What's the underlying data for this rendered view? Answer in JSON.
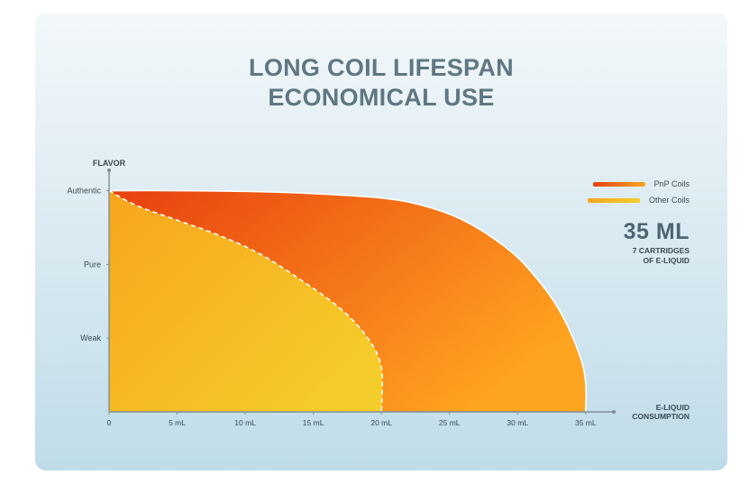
{
  "title_line1": "LONG COIL LIFESPAN",
  "title_line2": "ECONOMICAL USE",
  "highlight": {
    "value": "35 ML",
    "line1": "7 CARTRIDGES",
    "line2": "OF E-LIQUID"
  },
  "colors": {
    "pnp_start": "#e8400f",
    "pnp_end": "#ffa420",
    "other_start": "#f7a51d",
    "other_end": "#f5cd2a",
    "axis": "#7d8f99"
  },
  "chart_data": {
    "type": "area",
    "title": "LONG COIL LIFESPAN ECONOMICAL USE",
    "xlabel": [
      "E-LIQUID",
      "CONSUMPTION"
    ],
    "ylabel": "FLAVOR",
    "x_ticks": [
      "0",
      "5 mL",
      "10 mL",
      "15 mL",
      "20 mL",
      "25 mL",
      "30 mL",
      "35 mL"
    ],
    "x_tick_values": [
      0,
      5,
      10,
      15,
      20,
      25,
      30,
      35
    ],
    "y_categories": [
      "Weak",
      "Pure",
      "Authentic"
    ],
    "y_category_levels": [
      1,
      2,
      3
    ],
    "xlim": [
      0,
      37
    ],
    "ylim": [
      0,
      3.3
    ],
    "legend_position": "top-right",
    "series": [
      {
        "name": "PnP Coils",
        "x": [
          0,
          5,
          10,
          15,
          20,
          23,
          26,
          29,
          31,
          33,
          34.5,
          35,
          35
        ],
        "y": [
          3,
          3,
          2.99,
          2.96,
          2.9,
          2.8,
          2.6,
          2.25,
          1.9,
          1.4,
          0.8,
          0.4,
          0
        ]
      },
      {
        "name": "Other Coils",
        "x": [
          0,
          2,
          5,
          8,
          11,
          14,
          17,
          19,
          20,
          20
        ],
        "y": [
          3,
          2.8,
          2.6,
          2.4,
          2.15,
          1.8,
          1.4,
          1.0,
          0.6,
          0
        ]
      }
    ]
  }
}
